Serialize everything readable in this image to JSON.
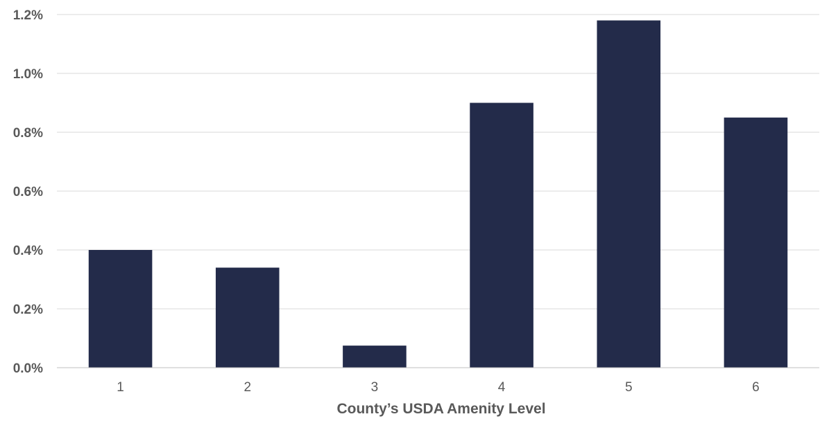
{
  "chart_data": {
    "type": "bar",
    "title": "",
    "xlabel": "County’s USDA Amenity Level",
    "ylabel": "",
    "categories": [
      "1",
      "2",
      "3",
      "4",
      "5",
      "6"
    ],
    "values": [
      0.4,
      0.34,
      0.075,
      0.9,
      1.18,
      0.85
    ],
    "value_format": "percent",
    "ylim": [
      0.0,
      1.2
    ],
    "yticks": [
      0.0,
      0.2,
      0.4,
      0.6,
      0.8,
      1.0,
      1.2
    ],
    "ytick_labels": [
      "0.0%",
      "0.2%",
      "0.4%",
      "0.6%",
      "0.8%",
      "1.0%",
      "1.2%"
    ],
    "grid": true,
    "legend": "none",
    "bar_color": "#232B4A",
    "grid_color": "#D9D9D9",
    "text_color": "#595959"
  }
}
